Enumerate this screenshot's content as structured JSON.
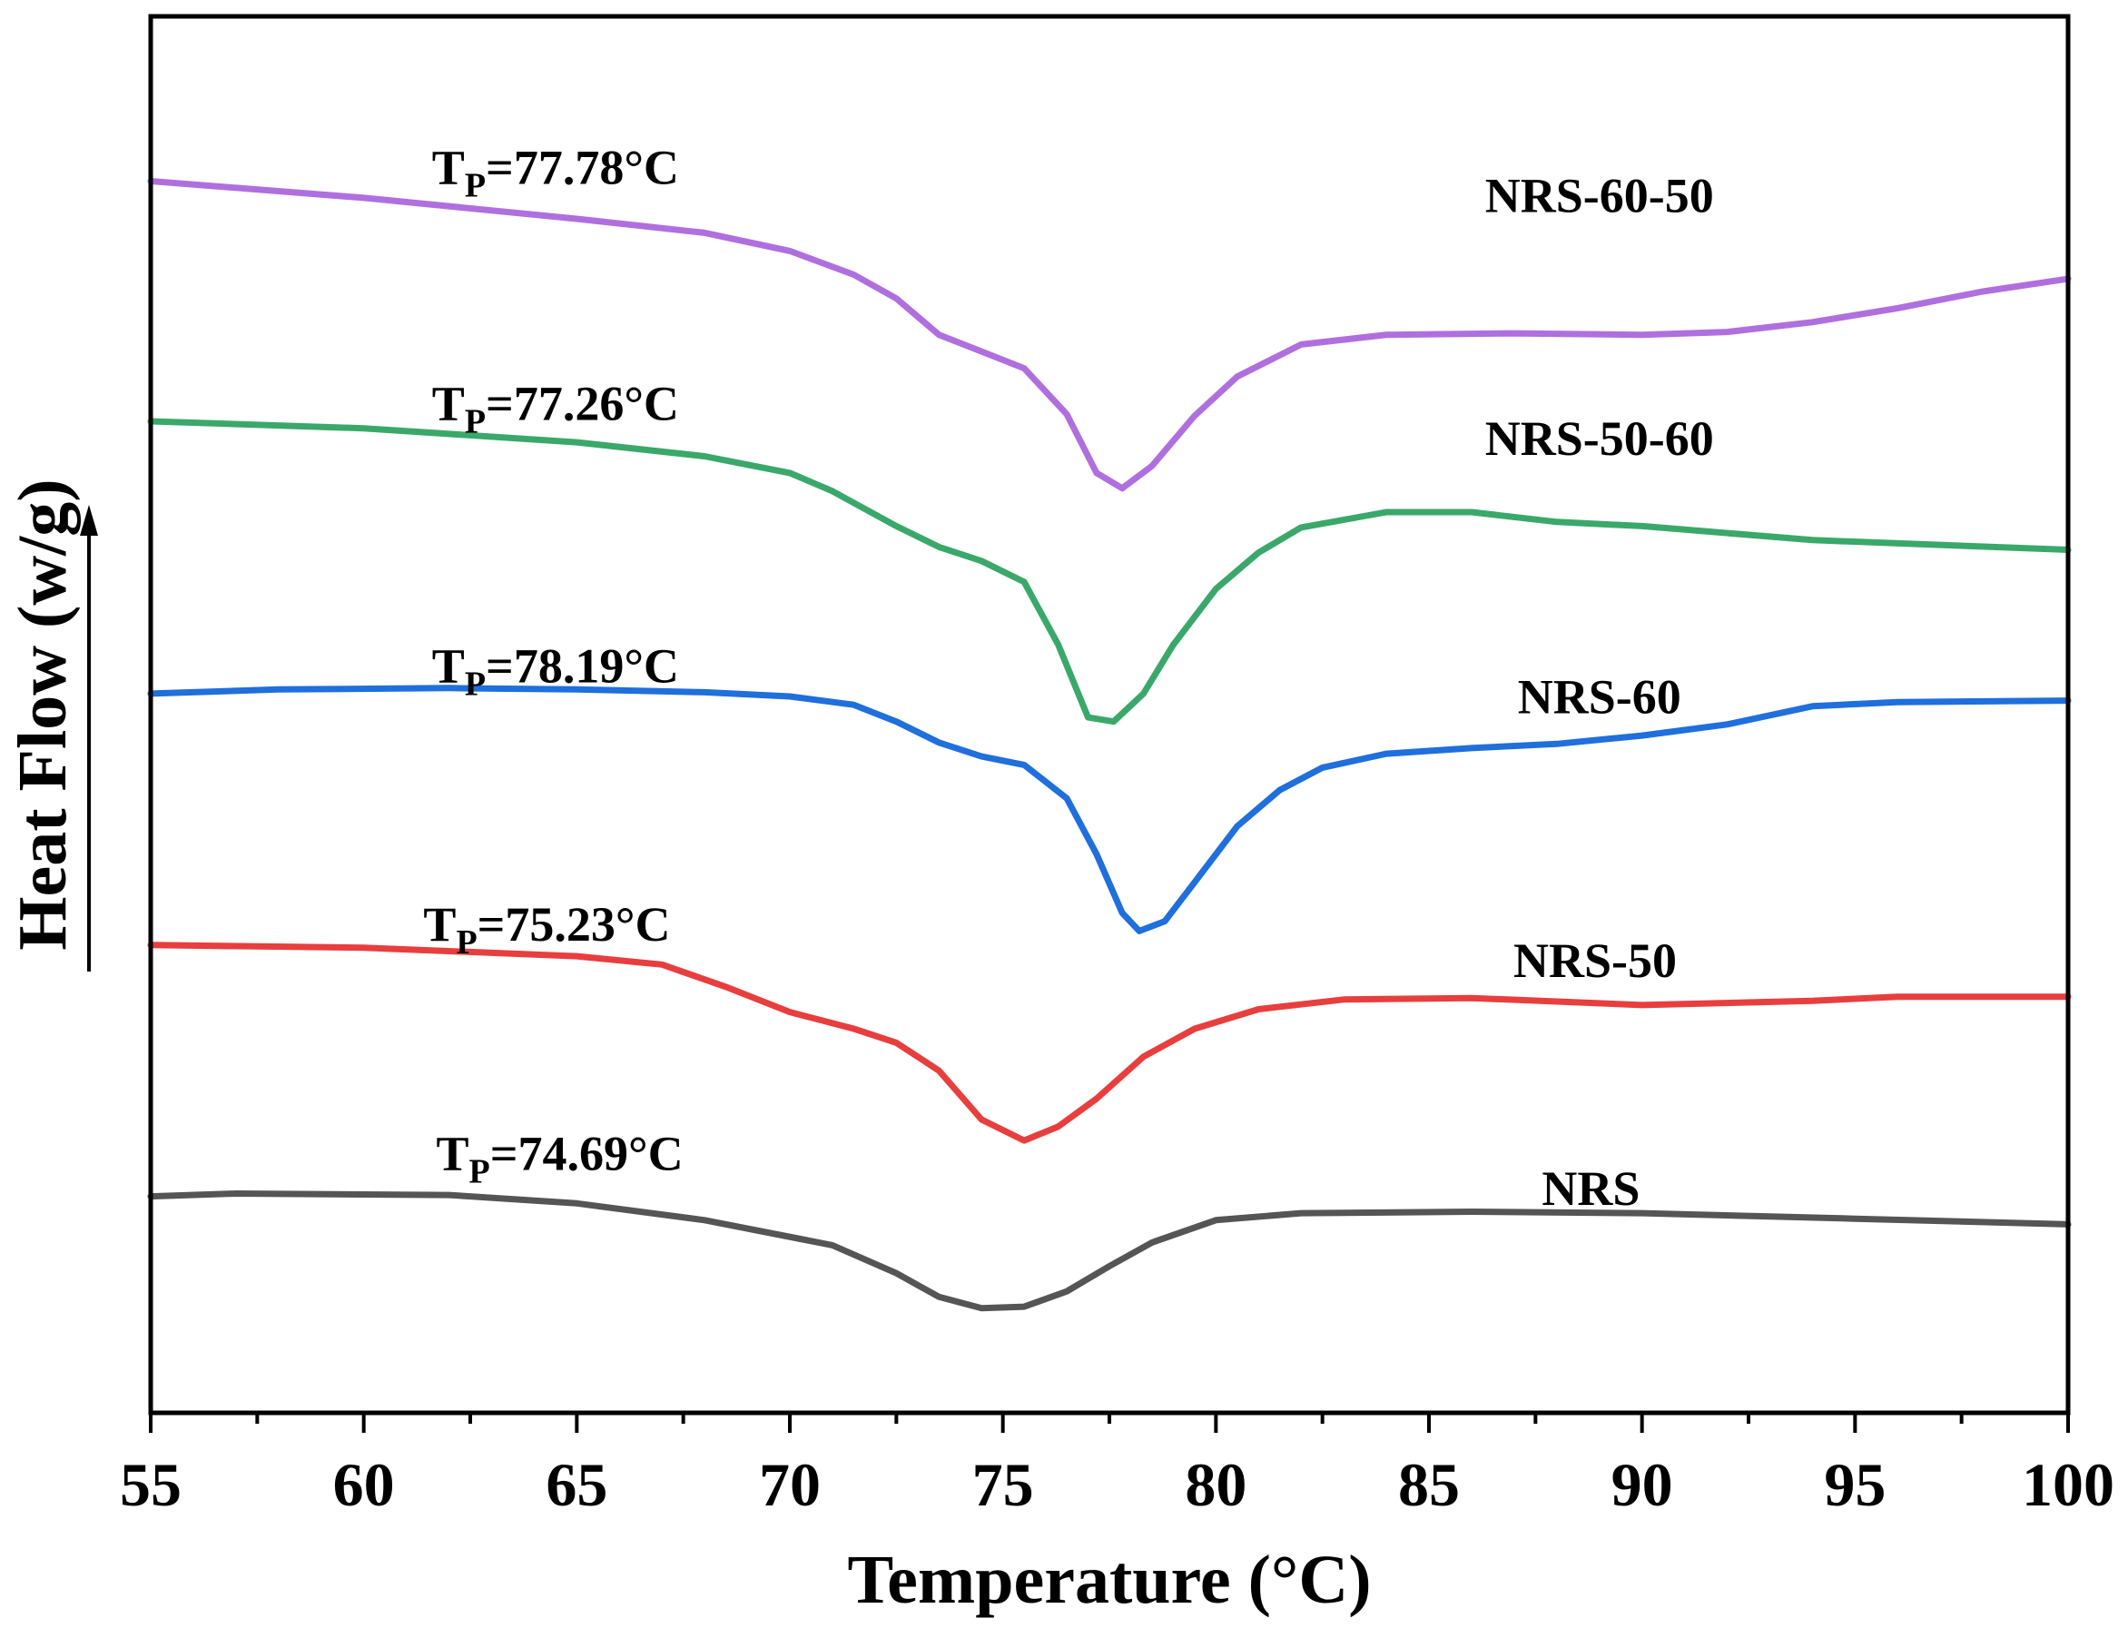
{
  "chart_data": {
    "type": "line",
    "xlabel": "Temperature (°C)",
    "ylabel": "Heat Flow (w/g)",
    "xlim": [
      55,
      100
    ],
    "x_ticks": [
      "55",
      "60",
      "65",
      "70",
      "75",
      "80",
      "85",
      "90",
      "95",
      "100"
    ],
    "ylim": [
      0,
      100
    ],
    "y_ticks_shown": false,
    "series": [
      {
        "name": "NRS-60-50",
        "label": "NRS-60-50",
        "annotation_main": "T",
        "annotation_sub": "P",
        "annotation_value": "=77.78°C",
        "color": "#b06fde",
        "points": [
          [
            55,
            88.2
          ],
          [
            60,
            87.0
          ],
          [
            65,
            85.5
          ],
          [
            68,
            84.5
          ],
          [
            70,
            83.2
          ],
          [
            71.5,
            81.5
          ],
          [
            72.5,
            79.8
          ],
          [
            73.5,
            77.2
          ],
          [
            74.5,
            76.0
          ],
          [
            75.5,
            74.8
          ],
          [
            76.5,
            71.5
          ],
          [
            77.2,
            67.3
          ],
          [
            77.8,
            66.2
          ],
          [
            78.5,
            67.8
          ],
          [
            79.5,
            71.4
          ],
          [
            80.5,
            74.2
          ],
          [
            82,
            76.5
          ],
          [
            84,
            77.2
          ],
          [
            87,
            77.3
          ],
          [
            90,
            77.2
          ],
          [
            92,
            77.4
          ],
          [
            94,
            78.1
          ],
          [
            96,
            79.1
          ],
          [
            98,
            80.3
          ],
          [
            100,
            81.2
          ]
        ]
      },
      {
        "name": "NRS-50-60",
        "label": "NRS-50-60",
        "annotation_main": "T",
        "annotation_sub": "P",
        "annotation_value": "=77.26°C",
        "color": "#3aa86a",
        "points": [
          [
            55,
            71.0
          ],
          [
            60,
            70.5
          ],
          [
            65,
            69.5
          ],
          [
            68,
            68.5
          ],
          [
            70,
            67.3
          ],
          [
            71,
            66.0
          ],
          [
            72.5,
            63.5
          ],
          [
            73.5,
            62.0
          ],
          [
            74.5,
            61.0
          ],
          [
            75.5,
            59.5
          ],
          [
            76.3,
            55.0
          ],
          [
            77,
            49.8
          ],
          [
            77.6,
            49.5
          ],
          [
            78.3,
            51.5
          ],
          [
            79,
            55.0
          ],
          [
            80,
            59.0
          ],
          [
            81,
            61.6
          ],
          [
            82,
            63.4
          ],
          [
            84,
            64.5
          ],
          [
            86,
            64.5
          ],
          [
            88,
            63.8
          ],
          [
            90,
            63.5
          ],
          [
            94,
            62.5
          ],
          [
            100,
            61.8
          ]
        ]
      },
      {
        "name": "NRS-60",
        "label": "NRS-60",
        "annotation_main": "T",
        "annotation_sub": "P",
        "annotation_value": "=78.19°C",
        "color": "#1f6fdc",
        "points": [
          [
            55,
            51.5
          ],
          [
            58,
            51.8
          ],
          [
            62,
            51.9
          ],
          [
            65,
            51.8
          ],
          [
            68,
            51.6
          ],
          [
            70,
            51.3
          ],
          [
            71.5,
            50.7
          ],
          [
            72.5,
            49.5
          ],
          [
            73.5,
            48.0
          ],
          [
            74.5,
            47.0
          ],
          [
            75.5,
            46.4
          ],
          [
            76.5,
            44.0
          ],
          [
            77.2,
            40.0
          ],
          [
            77.8,
            35.8
          ],
          [
            78.2,
            34.5
          ],
          [
            78.8,
            35.2
          ],
          [
            79.5,
            38.0
          ],
          [
            80.5,
            42.0
          ],
          [
            81.5,
            44.6
          ],
          [
            82.5,
            46.2
          ],
          [
            84,
            47.2
          ],
          [
            86,
            47.6
          ],
          [
            88,
            47.9
          ],
          [
            90,
            48.5
          ],
          [
            92,
            49.3
          ],
          [
            94,
            50.6
          ],
          [
            96,
            50.9
          ],
          [
            100,
            51.0
          ]
        ]
      },
      {
        "name": "NRS-50",
        "label": "NRS-50",
        "annotation_main": "T",
        "annotation_sub": "P",
        "annotation_value": "=75.23°C",
        "color": "#e83e3e",
        "points": [
          [
            55,
            33.5
          ],
          [
            60,
            33.3
          ],
          [
            65,
            32.7
          ],
          [
            67,
            32.1
          ],
          [
            68.5,
            30.5
          ],
          [
            70,
            28.7
          ],
          [
            71.5,
            27.5
          ],
          [
            72.5,
            26.5
          ],
          [
            73.5,
            24.5
          ],
          [
            74.5,
            21.0
          ],
          [
            75.5,
            19.5
          ],
          [
            76.3,
            20.5
          ],
          [
            77.2,
            22.5
          ],
          [
            78.3,
            25.5
          ],
          [
            79.5,
            27.5
          ],
          [
            81,
            28.9
          ],
          [
            83,
            29.6
          ],
          [
            86,
            29.7
          ],
          [
            90,
            29.2
          ],
          [
            94,
            29.5
          ],
          [
            96,
            29.8
          ],
          [
            100,
            29.8
          ]
        ]
      },
      {
        "name": "NRS",
        "label": "NRS",
        "annotation_main": "T",
        "annotation_sub": "P",
        "annotation_value": "=74.69°C",
        "color": "#555555",
        "points": [
          [
            55,
            15.5
          ],
          [
            57,
            15.7
          ],
          [
            62,
            15.6
          ],
          [
            65,
            15.0
          ],
          [
            68,
            13.8
          ],
          [
            71,
            12.0
          ],
          [
            72.5,
            10.0
          ],
          [
            73.5,
            8.3
          ],
          [
            74.5,
            7.5
          ],
          [
            75.5,
            7.6
          ],
          [
            76.5,
            8.7
          ],
          [
            77.5,
            10.5
          ],
          [
            78.5,
            12.2
          ],
          [
            80,
            13.8
          ],
          [
            82,
            14.3
          ],
          [
            86,
            14.4
          ],
          [
            90,
            14.3
          ],
          [
            95,
            13.9
          ],
          [
            100,
            13.5
          ]
        ]
      }
    ]
  }
}
